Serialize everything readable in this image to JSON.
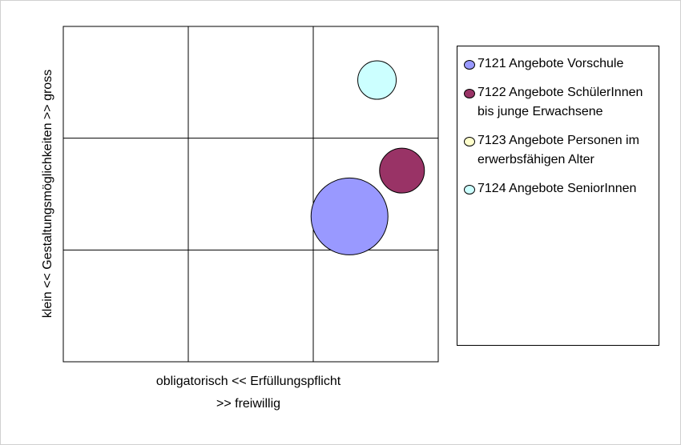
{
  "chart_data": {
    "type": "bubble",
    "x_label": [
      "obligatorisch <<     Erfüllungspflicht",
      ">> freiwillig"
    ],
    "y_label": "klein << Gestaltungsmöglichkeiten >> gross",
    "xlim": [
      0,
      3
    ],
    "ylim": [
      0,
      3
    ],
    "xticks": [
      0,
      1,
      2,
      3
    ],
    "yticks": [
      0,
      1,
      2,
      3
    ],
    "grid": true,
    "legend": "right",
    "series": [
      {
        "name": "7121 Angebote Vorschule",
        "color": "#9999ff",
        "x": [
          2.29
        ],
        "values": [
          1.3
        ],
        "sizes": [
          100
        ]
      },
      {
        "name": "7122 Angebote SchülerInnen bis junge Erwachsene",
        "color": "#993366",
        "x": [
          2.71
        ],
        "values": [
          1.71
        ],
        "sizes": [
          34
        ]
      },
      {
        "name": "7123 Angebote Personen im erwerbsfähigen Alter",
        "color": "#ffffcc",
        "x": [
          null
        ],
        "values": [
          null
        ],
        "sizes": [
          null
        ]
      },
      {
        "name": "7124 Angebote SeniorInnen",
        "color": "#ccffff",
        "x": [
          2.51
        ],
        "values": [
          2.52
        ],
        "sizes": [
          25
        ]
      }
    ]
  }
}
